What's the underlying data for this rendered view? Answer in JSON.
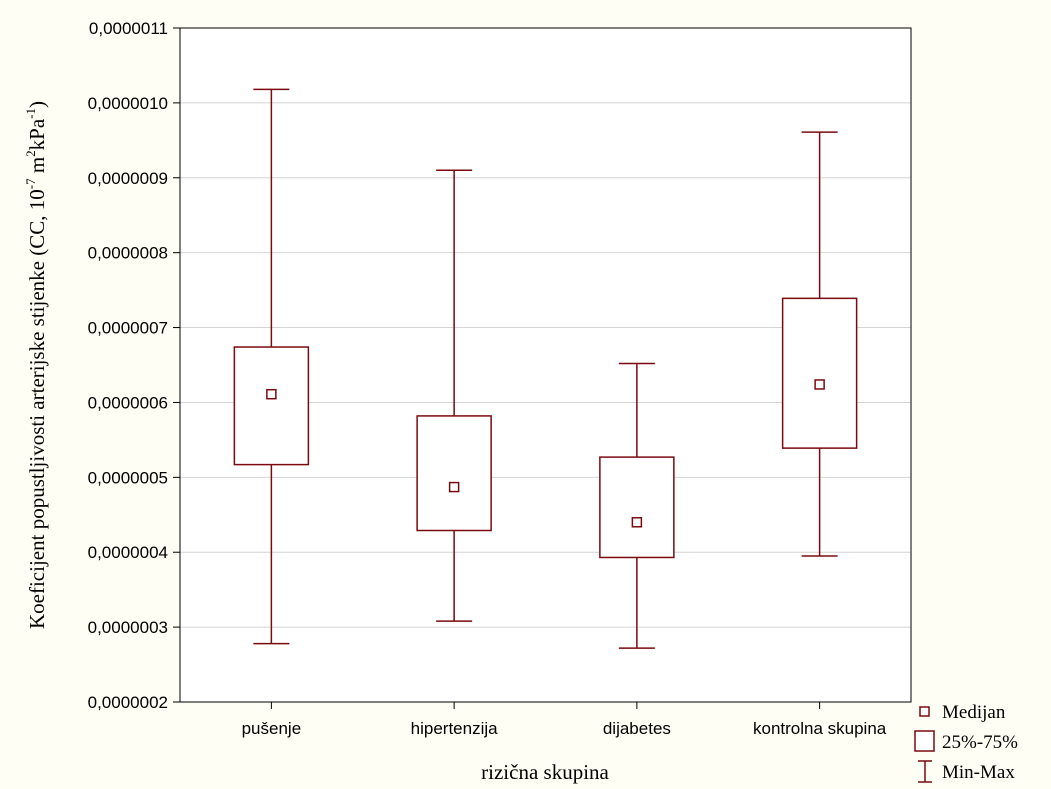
{
  "chart_data": {
    "type": "box",
    "xlabel": "rizična skupina",
    "ylabel": {
      "text": "Koeficijent popustljivosti arterijske stijenke (CC, 10",
      "exp1": "-7",
      "unit_m": " m",
      "exp2": "2",
      "unit_kpa": "kPa",
      "exp3": "-1",
      "close": ")"
    },
    "ylim": [
      2e-07,
      1.1e-06
    ],
    "y_ticks": [
      2e-07,
      3e-07,
      4e-07,
      5e-07,
      6e-07,
      7e-07,
      8e-07,
      9e-07,
      1e-06,
      1.1e-06
    ],
    "y_tick_labels": [
      "0,0000002",
      "0,0000003",
      "0,0000004",
      "0,0000005",
      "0,0000006",
      "0,0000007",
      "0,0000008",
      "0,0000009",
      "0,0000010",
      "0,0000011"
    ],
    "grid": "horizontal",
    "categories": [
      "pušenje",
      "hipertenzija",
      "dijabetes",
      "kontrolna skupina"
    ],
    "boxes": [
      {
        "min": 2.78e-07,
        "q1": 5.17e-07,
        "median": 6.11e-07,
        "q3": 6.74e-07,
        "max": 1.018e-06
      },
      {
        "min": 3.08e-07,
        "q1": 4.29e-07,
        "median": 4.87e-07,
        "q3": 5.82e-07,
        "max": 9.1e-07
      },
      {
        "min": 2.72e-07,
        "q1": 3.93e-07,
        "median": 4.4e-07,
        "q3": 5.27e-07,
        "max": 6.52e-07
      },
      {
        "min": 3.95e-07,
        "q1": 5.39e-07,
        "median": 6.24e-07,
        "q3": 7.39e-07,
        "max": 9.61e-07
      }
    ],
    "legend": {
      "position": "bottom-right",
      "entries": [
        "Medijan",
        "25%-75%",
        "Min-Max"
      ]
    },
    "colors": {
      "box": "#7a0a10",
      "grid": "#d4d4d4",
      "plot_bg": "#ffffff",
      "page_bg": "#fefef4",
      "axis": "#000000"
    }
  }
}
